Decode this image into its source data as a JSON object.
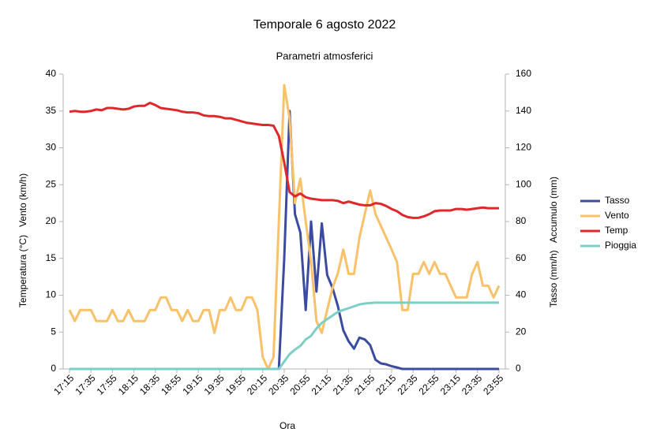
{
  "chart_data": {
    "type": "line",
    "title": "Temporale 6 agosto 2022",
    "subtitle": "Parametri atmosferici",
    "xlabel": "Ora",
    "ylabel": "Temperatura (°C)   Vento (km/h)",
    "y2label": "Tasso (mm/h)   Accumulo (mm)",
    "categories": [
      "17:15",
      null,
      null,
      null,
      "17:35",
      null,
      null,
      null,
      "17:55",
      null,
      null,
      null,
      "18:15",
      null,
      null,
      null,
      "18:35",
      null,
      null,
      null,
      "18:55",
      null,
      null,
      null,
      "19:15",
      null,
      null,
      null,
      "19:35",
      null,
      null,
      null,
      "19:55",
      null,
      null,
      null,
      "20:15",
      null,
      null,
      null,
      "20:35",
      null,
      null,
      null,
      "20:55",
      null,
      null,
      null,
      "21:15",
      null,
      null,
      null,
      "21:35",
      null,
      null,
      null,
      "21:55",
      null,
      null,
      null,
      "22:15",
      null,
      null,
      null,
      "22:35",
      null,
      null,
      null,
      "22:55",
      null,
      null,
      null,
      "23:15",
      null,
      null,
      null,
      "23:35",
      null,
      null,
      null,
      "23:55"
    ],
    "ylim": [
      0,
      40
    ],
    "yticks": [
      0,
      5,
      10,
      15,
      20,
      25,
      30,
      35,
      40
    ],
    "y2lim": [
      0,
      160
    ],
    "y2ticks": [
      0,
      20,
      40,
      60,
      80,
      100,
      120,
      140,
      160
    ],
    "legend": "right",
    "series": [
      {
        "name": "Tasso",
        "color": "#3b4ba0",
        "axis": "y2",
        "values": [
          0,
          0,
          0,
          0,
          0,
          0,
          0,
          0,
          0,
          0,
          0,
          0,
          0,
          0,
          0,
          0,
          0,
          0,
          0,
          0,
          0,
          0,
          0,
          0,
          0,
          0,
          0,
          0,
          0,
          0,
          0,
          0,
          0,
          0,
          0,
          0,
          0,
          0,
          0,
          0,
          60,
          140,
          84,
          74,
          32,
          80,
          42,
          79,
          51,
          44,
          34,
          21,
          15,
          11,
          17,
          16,
          13,
          5,
          3,
          2.5,
          1.5,
          0.8,
          0,
          0,
          0,
          0,
          0,
          0,
          0,
          0,
          0,
          0,
          0,
          0,
          0,
          0,
          0,
          0,
          0,
          0,
          0
        ]
      },
      {
        "name": "Vento",
        "color": "#f9c16a",
        "values": [
          8,
          6.5,
          8,
          8,
          8,
          6.5,
          6.5,
          6.5,
          8,
          6.5,
          6.5,
          8,
          6.5,
          6.5,
          6.5,
          8,
          8,
          9.7,
          9.7,
          8,
          8,
          6.5,
          8,
          6.5,
          6.5,
          8,
          8,
          4.9,
          8,
          8,
          9.7,
          8,
          8,
          9.7,
          9.7,
          8,
          1.6,
          0,
          1.6,
          20,
          38.5,
          34,
          22.5,
          25.8,
          20,
          14.5,
          6.5,
          4.9,
          8,
          11,
          13,
          16.2,
          12.9,
          12.9,
          17.8,
          21,
          24.2,
          21,
          19.4,
          17.8,
          16.2,
          14.5,
          8,
          8,
          12.9,
          12.9,
          14.5,
          12.9,
          14.5,
          12.9,
          12.9,
          11.3,
          9.7,
          9.7,
          9.7,
          12.9,
          14.5,
          11.3,
          11.3,
          9.7,
          11.3
        ]
      },
      {
        "name": "Temp",
        "color": "#e0272b",
        "values": [
          34.9,
          35.0,
          34.9,
          34.9,
          35.0,
          35.2,
          35.1,
          35.4,
          35.4,
          35.3,
          35.2,
          35.3,
          35.6,
          35.7,
          35.7,
          36.1,
          35.8,
          35.4,
          35.3,
          35.2,
          35.1,
          34.9,
          34.8,
          34.8,
          34.7,
          34.4,
          34.3,
          34.3,
          34.2,
          34.0,
          34.0,
          33.8,
          33.6,
          33.4,
          33.3,
          33.2,
          33.1,
          33.1,
          33.0,
          31.6,
          28.0,
          24.0,
          23.4,
          23.8,
          23.3,
          23.1,
          23.0,
          22.9,
          22.9,
          22.9,
          22.8,
          22.5,
          22.7,
          22.5,
          22.3,
          22.2,
          22.2,
          22.5,
          22.4,
          22.1,
          21.7,
          21.4,
          20.9,
          20.6,
          20.5,
          20.5,
          20.7,
          21.0,
          21.4,
          21.5,
          21.5,
          21.5,
          21.7,
          21.7,
          21.6,
          21.7,
          21.8,
          21.9,
          21.8,
          21.8,
          21.8
        ]
      },
      {
        "name": "Pioggia",
        "color": "#7ccfc7",
        "axis": "y2",
        "values": [
          0,
          0,
          0,
          0,
          0,
          0,
          0,
          0,
          0,
          0,
          0,
          0,
          0,
          0,
          0,
          0,
          0,
          0,
          0,
          0,
          0,
          0,
          0,
          0,
          0,
          0,
          0,
          0,
          0,
          0,
          0,
          0,
          0,
          0,
          0,
          0,
          0,
          0,
          0,
          0,
          4,
          8,
          10.5,
          12.5,
          16,
          18,
          22,
          25,
          27,
          29,
          31,
          32,
          33,
          34,
          35,
          35.5,
          35.8,
          36,
          36,
          36,
          36,
          36,
          36,
          36,
          36,
          36,
          36,
          36,
          36,
          36,
          36,
          36,
          36,
          36,
          36,
          36,
          36,
          36,
          36,
          36,
          36
        ]
      }
    ]
  }
}
